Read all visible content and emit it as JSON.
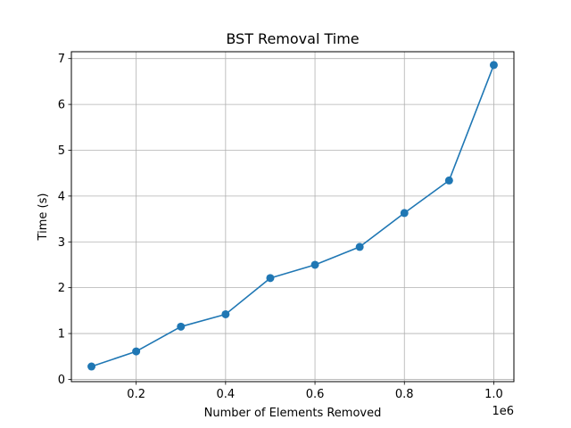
{
  "chart_data": {
    "type": "line",
    "title": "BST Removal Time",
    "xlabel": "Number of Elements Removed",
    "ylabel": "Time (s)",
    "x_offset_label": "1e6",
    "xlim": [
      55000,
      1045000
    ],
    "ylim": [
      -0.05,
      7.15
    ],
    "grid": true,
    "marker": "circle",
    "color": "#1f77b4",
    "x_ticks": [
      0.2,
      0.4,
      0.6,
      0.8,
      1.0
    ],
    "x_tick_labels": [
      "0.2",
      "0.4",
      "0.6",
      "0.8",
      "1.0"
    ],
    "y_ticks": [
      0,
      1,
      2,
      3,
      4,
      5,
      6,
      7
    ],
    "y_tick_labels": [
      "0",
      "1",
      "2",
      "3",
      "4",
      "5",
      "6",
      "7"
    ],
    "series": [
      {
        "x": [
          100000,
          200000,
          300000,
          400000,
          500000,
          600000,
          700000,
          800000,
          900000,
          1000000
        ],
        "values": [
          0.28,
          0.61,
          1.15,
          1.42,
          2.21,
          2.5,
          2.89,
          3.63,
          4.34,
          6.86
        ]
      }
    ]
  }
}
